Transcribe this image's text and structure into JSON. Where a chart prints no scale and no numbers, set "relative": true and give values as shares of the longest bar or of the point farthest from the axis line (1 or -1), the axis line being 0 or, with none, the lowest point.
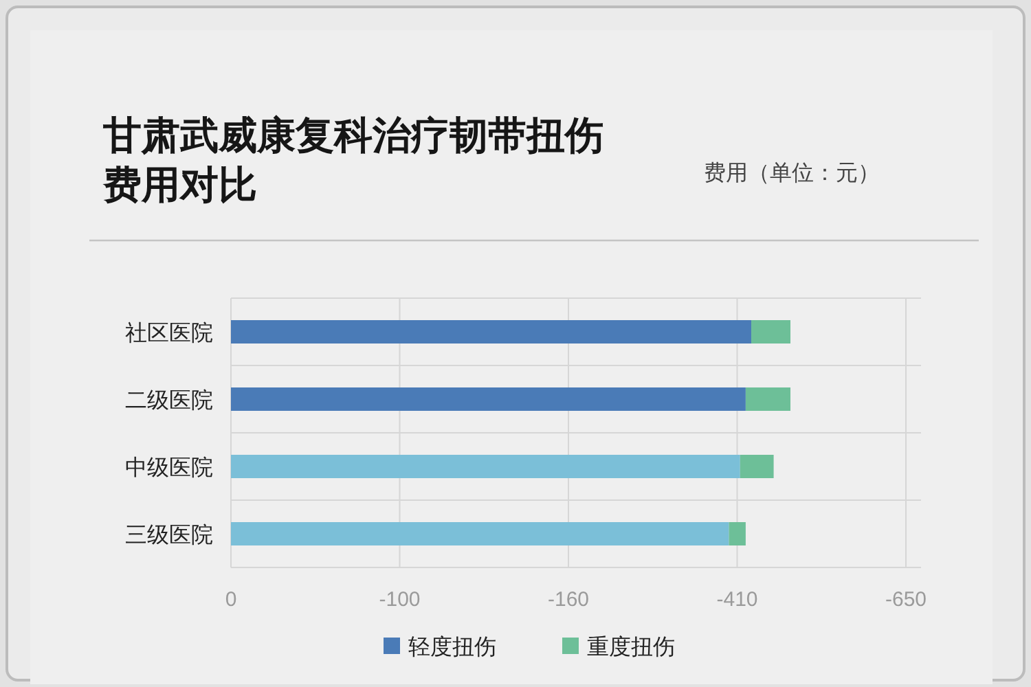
{
  "chart_data": {
    "type": "bar",
    "orientation": "horizontal",
    "stacked": true,
    "relative": true,
    "title": "甘肃武威康复科治疗韧带扭伤费用对比",
    "subtitle": "费用（单位：元）",
    "categories": [
      "社区医院",
      "二级医院",
      "中级医院",
      "三级医院"
    ],
    "series": [
      {
        "name": "轻度扭伤",
        "color": "#4a7bb7",
        "colors": [
          "#4a7bb7",
          "#4a7bb7",
          "#7bbfd8",
          "#7bbfd8"
        ],
        "values": [
          0.93,
          0.92,
          0.91,
          0.89
        ]
      },
      {
        "name": "重度扭伤",
        "color": "#6dbf98",
        "values": [
          0.07,
          0.08,
          0.06,
          0.03
        ]
      }
    ],
    "annotations": [
      "0",
      "-100",
      "-160",
      "-410",
      "-650"
    ],
    "grid": true,
    "legend": "bottom"
  }
}
